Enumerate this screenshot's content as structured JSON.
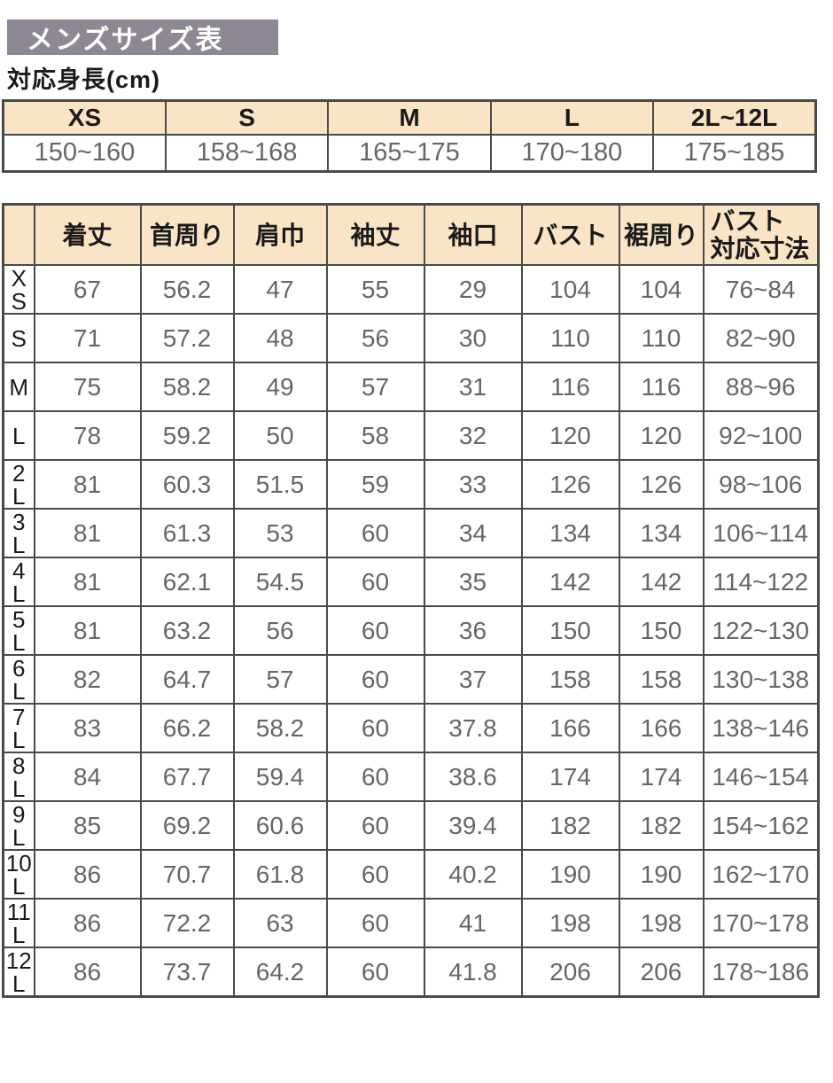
{
  "title": "メンズサイズ表",
  "colors": {
    "title_bar_bg": "#8e8894",
    "header_cell_bg": "#fae4c6",
    "border": "#4a4a4a",
    "value_text": "#666666"
  },
  "height_section": {
    "label": "対応身長(cm)",
    "columns": [
      "XS",
      "S",
      "M",
      "L",
      "2L~12L"
    ],
    "values": [
      "150~160",
      "158~168",
      "165~175",
      "170~180",
      "175~185"
    ]
  },
  "size_table": {
    "corner": "",
    "columns": [
      "着丈",
      "首周り",
      "肩巾",
      "袖丈",
      "袖口",
      "バスト",
      "裾周り",
      "バスト\n対応寸法"
    ],
    "rows": [
      {
        "size": "X\nS",
        "values": [
          "67",
          "56.2",
          "47",
          "55",
          "29",
          "104",
          "104",
          "76~84"
        ]
      },
      {
        "size": "S",
        "values": [
          "71",
          "57.2",
          "48",
          "56",
          "30",
          "110",
          "110",
          "82~90"
        ]
      },
      {
        "size": "M",
        "values": [
          "75",
          "58.2",
          "49",
          "57",
          "31",
          "116",
          "116",
          "88~96"
        ]
      },
      {
        "size": "L",
        "values": [
          "78",
          "59.2",
          "50",
          "58",
          "32",
          "120",
          "120",
          "92~100"
        ]
      },
      {
        "size": "2\nL",
        "values": [
          "81",
          "60.3",
          "51.5",
          "59",
          "33",
          "126",
          "126",
          "98~106"
        ]
      },
      {
        "size": "3\nL",
        "values": [
          "81",
          "61.3",
          "53",
          "60",
          "34",
          "134",
          "134",
          "106~114"
        ]
      },
      {
        "size": "4\nL",
        "values": [
          "81",
          "62.1",
          "54.5",
          "60",
          "35",
          "142",
          "142",
          "114~122"
        ]
      },
      {
        "size": "5\nL",
        "values": [
          "81",
          "63.2",
          "56",
          "60",
          "36",
          "150",
          "150",
          "122~130"
        ]
      },
      {
        "size": "6\nL",
        "values": [
          "82",
          "64.7",
          "57",
          "60",
          "37",
          "158",
          "158",
          "130~138"
        ]
      },
      {
        "size": "7\nL",
        "values": [
          "83",
          "66.2",
          "58.2",
          "60",
          "37.8",
          "166",
          "166",
          "138~146"
        ]
      },
      {
        "size": "8\nL",
        "values": [
          "84",
          "67.7",
          "59.4",
          "60",
          "38.6",
          "174",
          "174",
          "146~154"
        ]
      },
      {
        "size": "9\nL",
        "values": [
          "85",
          "69.2",
          "60.6",
          "60",
          "39.4",
          "182",
          "182",
          "154~162"
        ]
      },
      {
        "size": "10\nL",
        "values": [
          "86",
          "70.7",
          "61.8",
          "60",
          "40.2",
          "190",
          "190",
          "162~170"
        ]
      },
      {
        "size": "11\nL",
        "values": [
          "86",
          "72.2",
          "63",
          "60",
          "41",
          "198",
          "198",
          "170~178"
        ]
      },
      {
        "size": "12\nL",
        "values": [
          "86",
          "73.7",
          "64.2",
          "60",
          "41.8",
          "206",
          "206",
          "178~186"
        ]
      }
    ]
  }
}
